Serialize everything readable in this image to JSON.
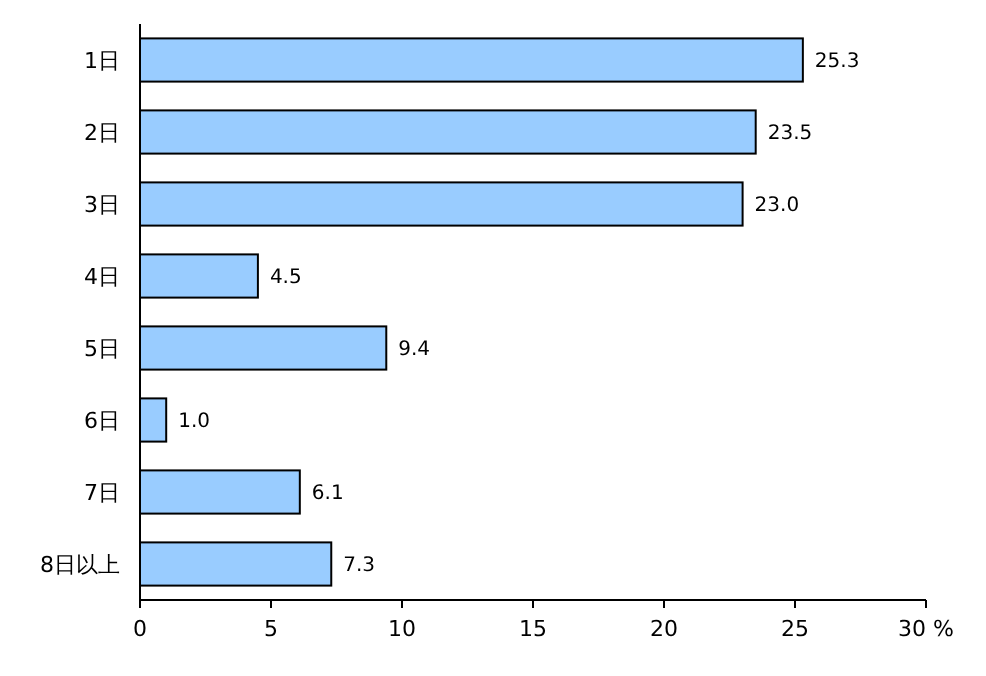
{
  "chart_data": {
    "type": "bar",
    "orientation": "horizontal",
    "categories": [
      "1日",
      "2日",
      "3日",
      "4日",
      "5日",
      "6日",
      "7日",
      "8日以上"
    ],
    "values": [
      25.3,
      23.5,
      23.0,
      4.5,
      9.4,
      1.0,
      6.1,
      7.3
    ],
    "value_labels": [
      "25.3",
      "23.5",
      "23.0",
      "4.5",
      "9.4",
      "1.0",
      "6.1",
      "7.3"
    ],
    "color": "#99ccff",
    "xlim": [
      0,
      30
    ],
    "xticks": [
      0,
      5,
      10,
      15,
      20,
      25,
      {
        "value": 30,
        "label": "30 %"
      }
    ],
    "grid": false
  }
}
